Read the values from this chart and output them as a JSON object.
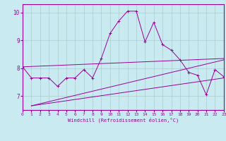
{
  "xlabel": "Windchill (Refroidissement éolien,°C)",
  "bg_color": "#c8eaf0",
  "line_color": "#990099",
  "grid_color": "#aacccc",
  "xlim": [
    0,
    23
  ],
  "ylim": [
    6.5,
    10.3
  ],
  "yticks": [
    7,
    8,
    9,
    10
  ],
  "xticks": [
    0,
    1,
    2,
    3,
    4,
    5,
    6,
    7,
    8,
    9,
    10,
    11,
    12,
    13,
    14,
    15,
    16,
    17,
    18,
    19,
    20,
    21,
    22,
    23
  ],
  "series1_x": [
    0,
    1,
    2,
    3,
    4,
    5,
    6,
    7,
    8,
    9,
    10,
    11,
    12,
    13,
    14,
    15,
    16,
    17,
    18,
    19,
    20,
    21,
    22,
    23
  ],
  "series1_y": [
    8.05,
    7.65,
    7.65,
    7.65,
    7.35,
    7.65,
    7.65,
    7.95,
    7.65,
    8.35,
    9.25,
    9.7,
    10.05,
    10.05,
    8.95,
    9.65,
    8.85,
    8.65,
    8.3,
    7.85,
    7.75,
    7.05,
    7.95,
    7.7
  ],
  "line1_x": [
    1,
    23
  ],
  "line1_y": [
    6.65,
    8.3
  ],
  "line2_x": [
    1,
    23
  ],
  "line2_y": [
    6.65,
    7.65
  ],
  "line3_x": [
    0,
    23
  ],
  "line3_y": [
    8.05,
    8.35
  ]
}
